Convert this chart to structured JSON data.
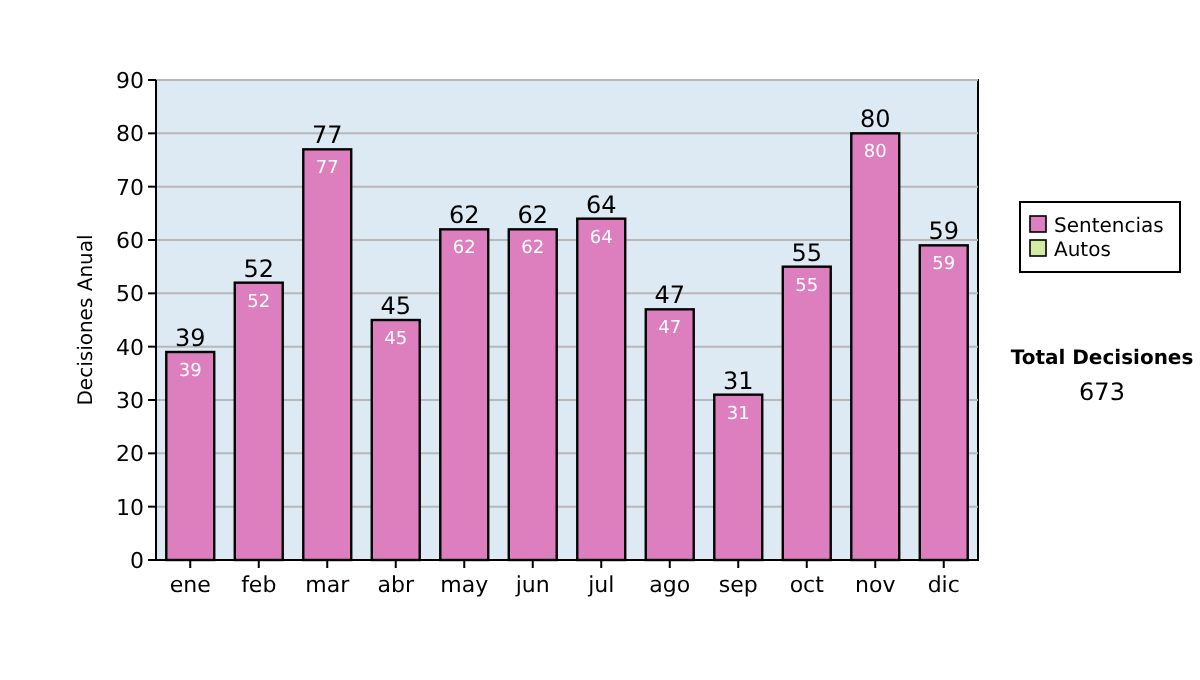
{
  "chart_data": {
    "type": "bar",
    "ylabel": "Decisiones Anual",
    "categories": [
      "ene",
      "feb",
      "mar",
      "abr",
      "may",
      "jun",
      "jul",
      "ago",
      "sep",
      "oct",
      "nov",
      "dic"
    ],
    "series": [
      {
        "name": "Sentencias",
        "color": "#dd7fbf",
        "values": [
          39,
          52,
          77,
          45,
          62,
          62,
          64,
          47,
          31,
          55,
          80,
          59
        ]
      },
      {
        "name": "Autos",
        "color": "#d4eba4",
        "values": [
          null,
          null,
          null,
          null,
          null,
          null,
          null,
          null,
          null,
          null,
          null,
          null
        ]
      }
    ],
    "stacked": true,
    "data_labels": true,
    "totals": [
      "39",
      "52",
      "77",
      "45",
      "62",
      "62",
      "64",
      "47",
      "31",
      "55",
      "80",
      "59"
    ],
    "ylim": [
      0,
      90
    ],
    "yticks": [
      0,
      10,
      20,
      30,
      40,
      50,
      60,
      70,
      80,
      90
    ],
    "grid": "y",
    "legend": "right",
    "annotations": [
      "Total Decisiones",
      "673"
    ]
  }
}
